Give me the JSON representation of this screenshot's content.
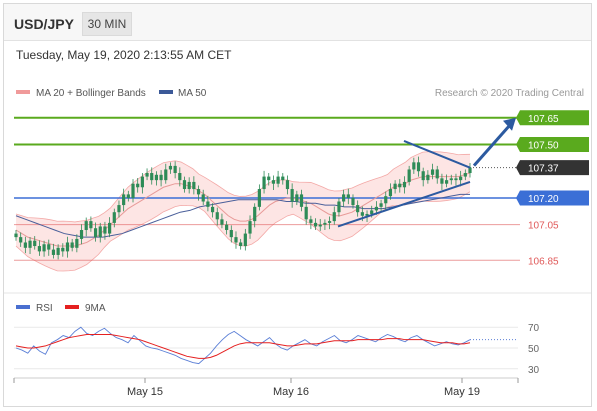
{
  "header": {
    "symbol": "USD/JPY",
    "timeframe": "30 MIN"
  },
  "timestamp": "Tuesday, May 19, 2020 2:13:55 AM CET",
  "credit": "Research © 2020 Trading Central",
  "colors": {
    "resistance": "#5aaa1e",
    "support": "#3b6fd6",
    "red_level": "#e05a5a",
    "current": "#333333",
    "bollinger_fill": "#fde0df",
    "bollinger_line": "#f3a8a6",
    "ma20": "#e89a98",
    "ma50": "#4a5f9a",
    "candle": "#2e8b57",
    "arrow": "#2c5aa0",
    "rsi": "#5b7fd6",
    "rsi_ma": "#e52020"
  },
  "chart_data": [
    {
      "type": "line",
      "title": "",
      "legend": [
        {
          "name": "MA 20 + Bollinger Bands",
          "color": "#f09a9a"
        },
        {
          "name": "MA 50",
          "color": "#3b5998"
        }
      ],
      "x_ticks": [
        "May 15",
        "May 16",
        "May 19"
      ],
      "ylim": [
        106.7,
        107.75
      ],
      "levels": [
        {
          "value": 107.65,
          "label": "107.65",
          "kind": "resistance"
        },
        {
          "value": 107.5,
          "label": "107.50",
          "kind": "resistance"
        },
        {
          "value": 107.37,
          "label": "107.37",
          "kind": "current"
        },
        {
          "value": 107.2,
          "label": "107.20",
          "kind": "support"
        },
        {
          "value": 107.05,
          "label": "107.05",
          "kind": "minor"
        },
        {
          "value": 106.85,
          "label": "106.85",
          "kind": "minor"
        }
      ],
      "close": [
        106.98,
        106.95,
        106.92,
        106.96,
        106.93,
        106.9,
        106.94,
        106.91,
        106.88,
        106.92,
        106.9,
        106.95,
        106.92,
        106.97,
        107.02,
        107.07,
        107.03,
        106.98,
        107.04,
        107.0,
        107.06,
        107.12,
        107.16,
        107.22,
        107.2,
        107.28,
        107.26,
        107.32,
        107.34,
        107.3,
        107.33,
        107.3,
        107.36,
        107.38,
        107.34,
        107.3,
        107.25,
        107.29,
        107.25,
        107.22,
        107.18,
        107.15,
        107.12,
        107.08,
        107.05,
        107.02,
        106.98,
        106.95,
        106.93,
        107.0,
        107.07,
        107.15,
        107.25,
        107.32,
        107.3,
        107.28,
        107.32,
        107.3,
        107.25,
        107.18,
        107.22,
        107.15,
        107.08,
        107.06,
        107.04,
        107.05,
        107.06,
        107.07,
        107.12,
        107.18,
        107.22,
        107.2,
        107.16,
        107.12,
        107.1,
        107.11,
        107.13,
        107.15,
        107.17,
        107.21,
        107.25,
        107.28,
        107.26,
        107.29,
        107.36,
        107.4,
        107.35,
        107.3,
        107.33,
        107.36,
        107.31,
        107.28,
        107.3,
        107.31,
        107.3,
        107.32,
        107.34,
        107.37
      ],
      "ma20": [
        107.02,
        107.0,
        106.98,
        106.97,
        106.96,
        106.95,
        106.94,
        106.93,
        106.93,
        106.93,
        106.93,
        106.94,
        106.95,
        106.97,
        106.99,
        107.02,
        107.05,
        107.08,
        107.11,
        107.14,
        107.16,
        107.18,
        107.2,
        107.22,
        107.24,
        107.26,
        107.27,
        107.28,
        107.28,
        107.27,
        107.26,
        107.24,
        107.22,
        107.19,
        107.16,
        107.13,
        107.1,
        107.08,
        107.07,
        107.07,
        107.08,
        107.1,
        107.13,
        107.16,
        107.18,
        107.19,
        107.2,
        107.2,
        107.19,
        107.18,
        107.17,
        107.15,
        107.13,
        107.11,
        107.1,
        107.1,
        107.11,
        107.12,
        107.14,
        107.16,
        107.18,
        107.2,
        107.22,
        107.24,
        107.26,
        107.27,
        107.28,
        107.3,
        107.31,
        107.32,
        107.32,
        107.32,
        107.32,
        107.32,
        107.32,
        107.32,
        107.33,
        107.34
      ],
      "ma50": [
        107.1,
        107.08,
        107.06,
        107.04,
        107.02,
        107.0,
        106.99,
        106.98,
        106.98,
        106.98,
        106.99,
        107.0,
        107.02,
        107.04,
        107.06,
        107.08,
        107.1,
        107.12,
        107.13,
        107.15,
        107.16,
        107.17,
        107.18,
        107.19,
        107.19,
        107.19,
        107.19,
        107.19,
        107.18,
        107.18,
        107.17,
        107.17,
        107.16,
        107.16,
        107.15,
        107.15,
        107.14,
        107.14,
        107.14,
        107.15,
        107.16,
        107.17,
        107.18,
        107.19,
        107.2,
        107.21,
        107.22,
        107.22
      ]
    },
    {
      "type": "line",
      "title": "",
      "legend": [
        {
          "name": "RSI",
          "color": "#4a6fd0"
        },
        {
          "name": "9MA",
          "color": "#e52020"
        }
      ],
      "ylim": [
        25,
        75
      ],
      "yticks": [
        70,
        50,
        30
      ],
      "rsi": [
        50,
        48,
        45,
        52,
        47,
        44,
        55,
        58,
        62,
        60,
        66,
        70,
        64,
        62,
        66,
        69,
        64,
        60,
        58,
        55,
        62,
        57,
        52,
        50,
        49,
        47,
        45,
        43,
        40,
        38,
        36,
        35,
        40,
        45,
        52,
        58,
        63,
        66,
        62,
        58,
        55,
        52,
        56,
        60,
        54,
        50,
        48,
        52,
        55,
        58,
        54,
        52,
        56,
        59,
        62,
        57,
        55,
        58,
        62,
        60,
        58,
        56,
        60,
        63,
        61,
        58,
        56,
        60,
        62,
        58,
        55,
        52,
        54,
        56,
        54,
        53,
        55,
        58
      ],
      "rsi_ma": [
        52,
        51,
        50,
        50,
        51,
        52,
        54,
        56,
        58,
        60,
        61,
        62,
        63,
        63,
        63,
        63,
        63,
        62,
        61,
        60,
        59,
        58,
        56,
        54,
        52,
        50,
        48,
        46,
        44,
        42,
        41,
        40,
        40,
        41,
        43,
        46,
        49,
        52,
        54,
        55,
        55,
        55,
        55,
        55,
        54,
        53,
        52,
        52,
        53,
        54,
        54,
        54,
        55,
        56,
        57,
        57,
        57,
        57,
        58,
        58,
        58,
        58,
        58,
        59,
        59,
        59,
        58,
        58,
        58,
        58,
        57,
        56,
        55,
        55,
        55,
        54,
        54,
        55
      ]
    }
  ]
}
